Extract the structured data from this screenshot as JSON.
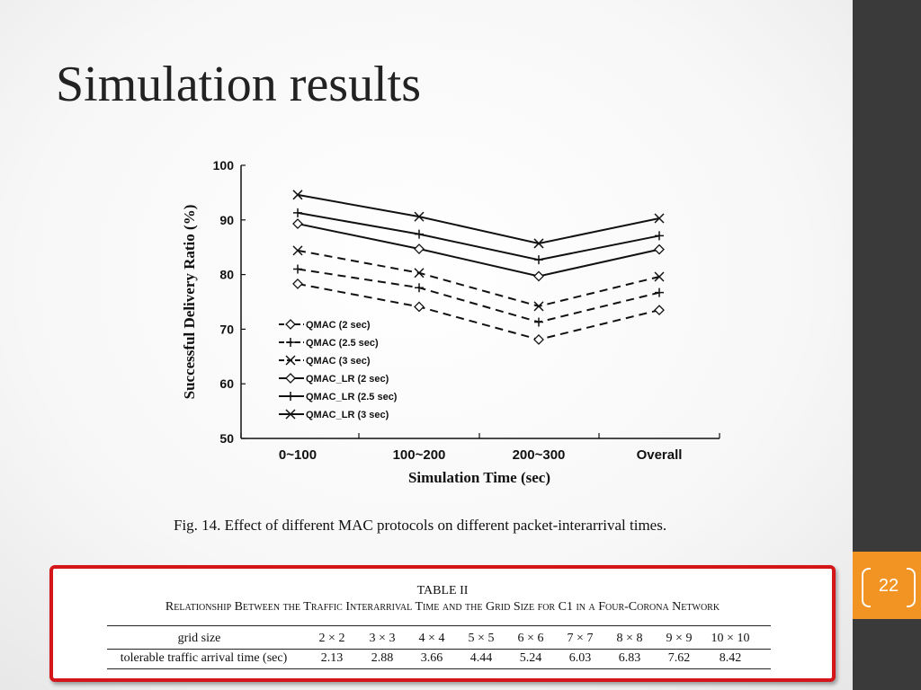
{
  "slide": {
    "title": "Simulation results",
    "page_number": "22",
    "colors": {
      "sidebar": "#3a3a3a",
      "page_box": "#f29423",
      "table_border": "#d4161a"
    }
  },
  "figure": {
    "caption": "Fig. 14.   Effect of different MAC protocols on different packet-interarrival times."
  },
  "chart_data": {
    "type": "line",
    "categories": [
      "0~100",
      "100~200",
      "200~300",
      "Overall"
    ],
    "xlabel": "Simulation Time (sec)",
    "ylabel": "Successful Delivery Ratio (%)",
    "ylim": [
      50,
      100
    ],
    "yticks": [
      50,
      60,
      70,
      80,
      90,
      100
    ],
    "legend_position": "lower-left",
    "series": [
      {
        "name": "QMAC (2 sec)",
        "style": "dashed",
        "marker": "diamond",
        "values": [
          78.3,
          74.1,
          68.1,
          73.5
        ]
      },
      {
        "name": "QMAC (2.5 sec)",
        "style": "dashed",
        "marker": "plus",
        "values": [
          81.0,
          77.6,
          71.3,
          76.7
        ]
      },
      {
        "name": "QMAC (3 sec)",
        "style": "dashed",
        "marker": "x",
        "values": [
          84.4,
          80.3,
          74.2,
          79.6
        ]
      },
      {
        "name": "QMAC_LR (2 sec)",
        "style": "solid",
        "marker": "diamond",
        "values": [
          89.3,
          84.7,
          79.7,
          84.6
        ]
      },
      {
        "name": "QMAC_LR (2.5 sec)",
        "style": "solid",
        "marker": "plus",
        "values": [
          91.3,
          87.4,
          82.7,
          87.1
        ]
      },
      {
        "name": "QMAC_LR (3 sec)",
        "style": "solid",
        "marker": "x",
        "values": [
          94.6,
          90.6,
          85.7,
          90.3
        ]
      }
    ]
  },
  "table": {
    "title": "TABLE   II",
    "caption": "Relationship Between the Traffic Interarrival Time and the Grid Size for C1 in a Four-Corona Network",
    "row1_label": "grid size",
    "row2_label": "tolerable traffic arrival time (sec)",
    "grid_sizes": [
      "2 × 2",
      "3 × 3",
      "4 × 4",
      "5 × 5",
      "6 × 6",
      "7 × 7",
      "8 × 8",
      "9 × 9",
      "10 × 10"
    ],
    "arrival_times": [
      "2.13",
      "2.88",
      "3.66",
      "4.44",
      "5.24",
      "6.03",
      "6.83",
      "7.62",
      "8.42"
    ]
  }
}
